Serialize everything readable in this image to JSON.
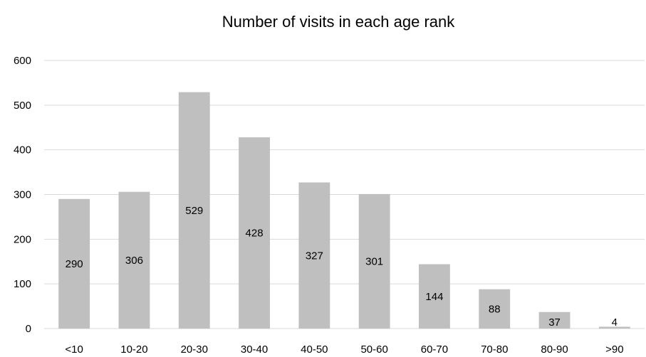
{
  "chart_data": {
    "type": "bar",
    "title": "Number of visits in each age rank",
    "xlabel": "",
    "ylabel": "",
    "categories": [
      "<10",
      "10-20",
      "20-30",
      "30-40",
      "40-50",
      "50-60",
      "60-70",
      "70-80",
      "80-90",
      ">90"
    ],
    "values": [
      290,
      306,
      529,
      428,
      327,
      301,
      144,
      88,
      37,
      4
    ],
    "ylim": [
      0,
      600
    ],
    "yticks": [
      0,
      100,
      200,
      300,
      400,
      500,
      600
    ],
    "grid": true,
    "legend": "none",
    "bar_color": "#bfbfbf",
    "grid_color": "#d9d9d9"
  }
}
